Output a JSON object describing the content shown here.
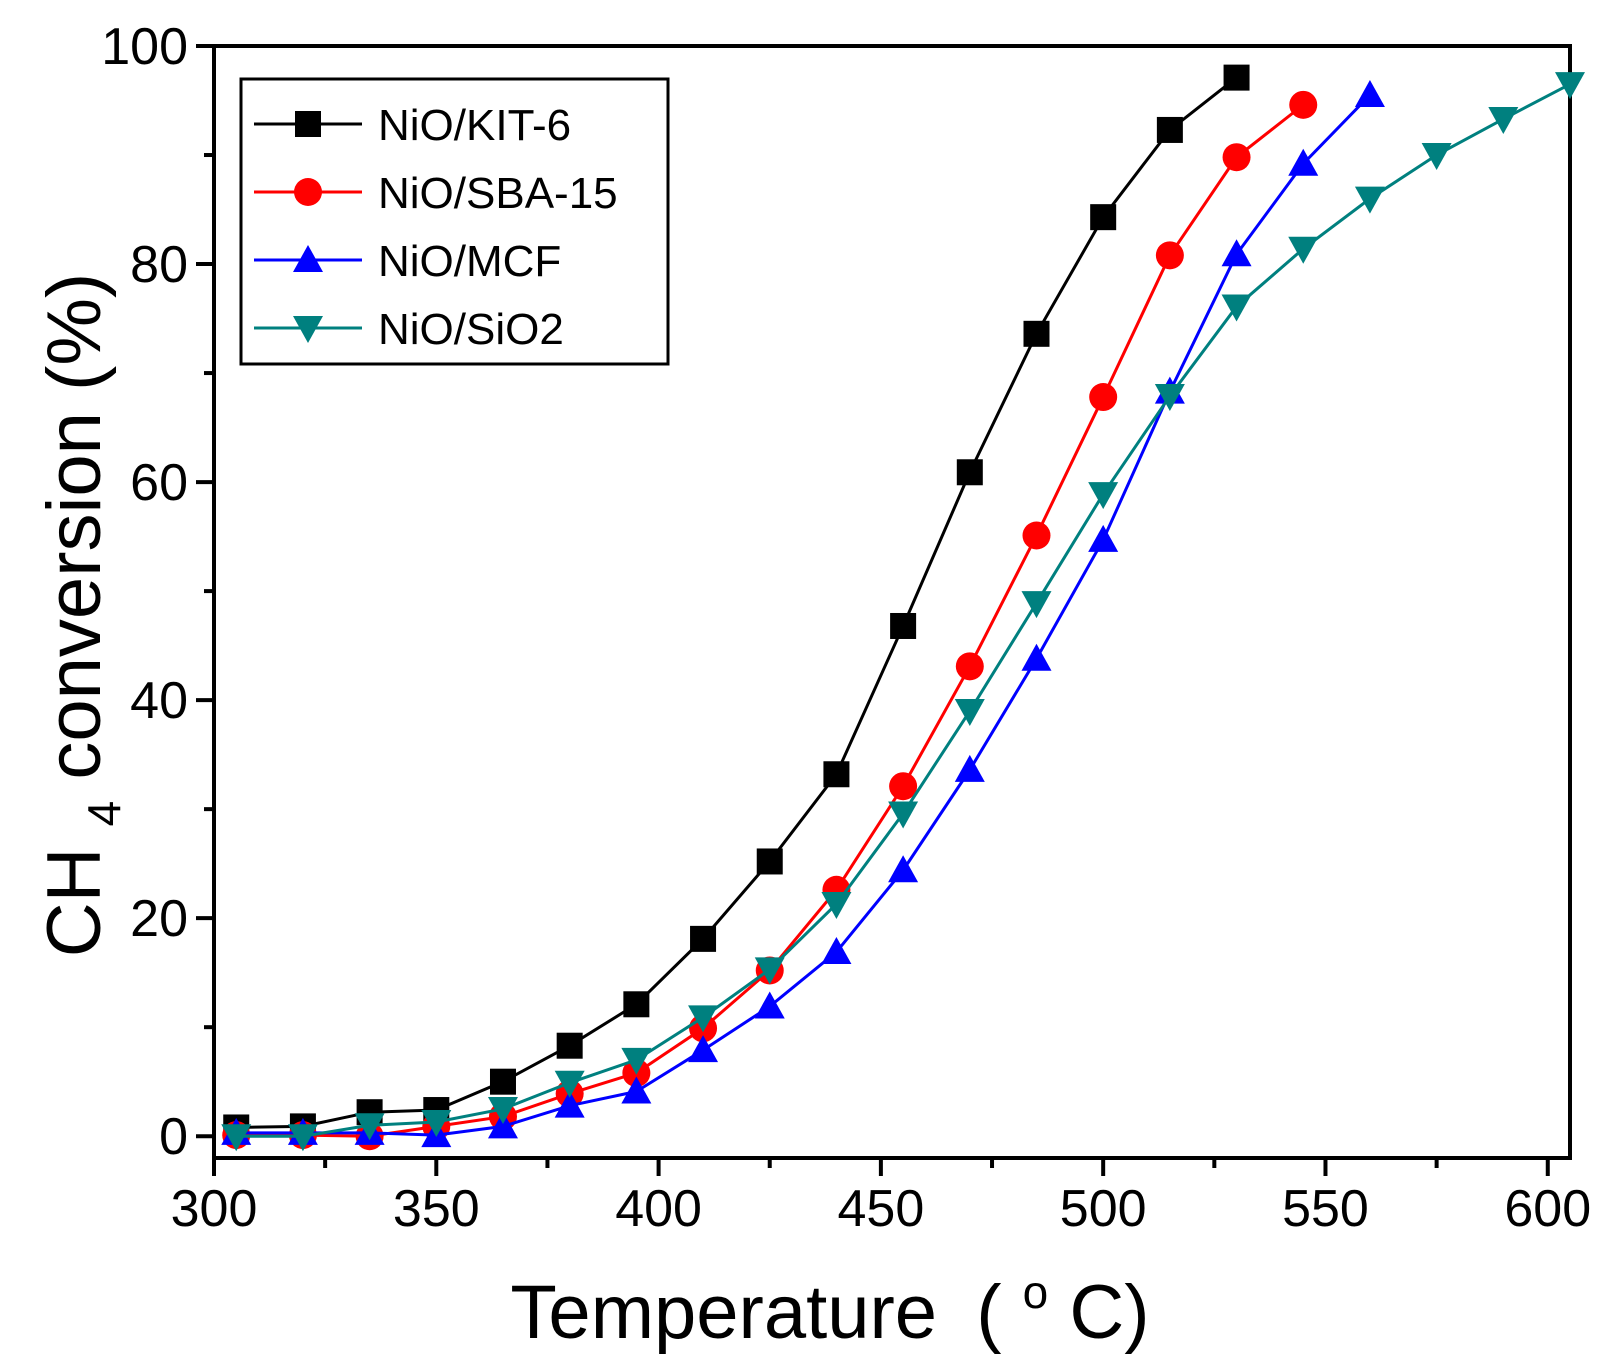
{
  "chart_data": {
    "type": "line",
    "title": "",
    "xlabel": "Temperature (°C)",
    "xlabel_main": "Temperature",
    "xlabel_unit_open": "(",
    "xlabel_unit_sup": "o",
    "xlabel_unit_close": "C)",
    "ylabel": "CH4 conversion (%)",
    "ylabel_main": "CH",
    "ylabel_sub": "4",
    "ylabel_rest": " conversion (%)",
    "xlim": [
      300,
      605
    ],
    "ylim": [
      -2,
      100
    ],
    "x_ticks": [
      300,
      350,
      400,
      450,
      500,
      550,
      600
    ],
    "x_tick_labels": [
      "300",
      "350",
      "400",
      "450",
      "500",
      "550",
      "600"
    ],
    "x_minor_ticks": [
      325,
      375,
      425,
      475,
      525,
      575
    ],
    "y_ticks": [
      0,
      20,
      40,
      60,
      80,
      100
    ],
    "y_tick_labels": [
      "0",
      "20",
      "40",
      "60",
      "80",
      "100"
    ],
    "y_minor_ticks": [
      10,
      30,
      50,
      70,
      90
    ],
    "legend_position": "top-left",
    "series": [
      {
        "name": "NiO/KIT-6",
        "color": "#000000",
        "marker": "square",
        "x": [
          305,
          320,
          335,
          350,
          365,
          380,
          395,
          410,
          425,
          440,
          455,
          470,
          485,
          500,
          515,
          530
        ],
        "y": [
          0.8,
          0.9,
          2.2,
          2.4,
          5.0,
          8.3,
          12.1,
          18.1,
          25.2,
          33.2,
          46.8,
          60.9,
          73.6,
          84.3,
          92.3,
          97.1
        ]
      },
      {
        "name": "NiO/SBA-15",
        "color": "#ff0000",
        "marker": "circle",
        "x": [
          305,
          320,
          335,
          350,
          365,
          380,
          395,
          410,
          425,
          440,
          455,
          470,
          485,
          500,
          515,
          530,
          545
        ],
        "y": [
          0.1,
          0.1,
          0.0,
          0.9,
          1.8,
          3.9,
          5.8,
          9.9,
          15.2,
          22.6,
          32.1,
          43.1,
          55.1,
          67.8,
          80.8,
          89.8,
          94.6
        ]
      },
      {
        "name": "NiO/MCF",
        "color": "#0000ff",
        "marker": "triangle-up",
        "x": [
          305,
          320,
          335,
          350,
          365,
          380,
          395,
          410,
          425,
          440,
          455,
          470,
          485,
          500,
          515,
          530,
          545,
          560
        ],
        "y": [
          0.3,
          0.3,
          0.3,
          0.1,
          0.9,
          2.8,
          4.1,
          7.9,
          11.9,
          16.9,
          24.4,
          33.6,
          43.8,
          54.7,
          68.3,
          80.9,
          89.2,
          95.5
        ]
      },
      {
        "name": "NiO/SiO2",
        "color": "#00807f",
        "marker": "triangle-down",
        "x": [
          305,
          320,
          335,
          350,
          365,
          380,
          395,
          410,
          425,
          440,
          455,
          470,
          485,
          500,
          515,
          530,
          545,
          560,
          575,
          590,
          605
        ],
        "y": [
          0.0,
          0.0,
          1.0,
          1.3,
          2.5,
          4.9,
          7.0,
          10.9,
          15.3,
          21.3,
          29.6,
          39.0,
          48.9,
          58.9,
          67.9,
          76.1,
          81.4,
          86.0,
          90.0,
          93.3,
          96.5
        ]
      }
    ]
  }
}
